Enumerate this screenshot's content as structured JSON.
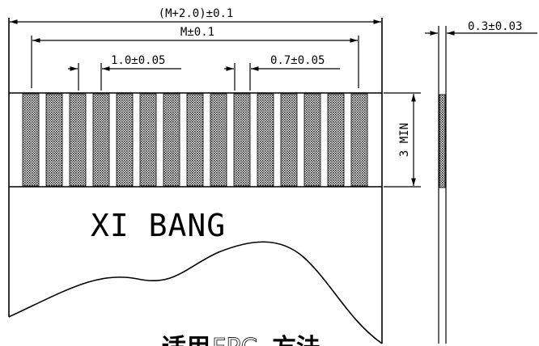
{
  "dimensions": {
    "overall_width": "(M+2.0)±0.1",
    "pitch_span": "M±0.1",
    "pitch": "1.0±0.05",
    "contact_width": "0.7±0.05",
    "exposed_length": "3 MIN",
    "thickness": "0.3±0.03"
  },
  "label": {
    "brand": "XI BANG"
  },
  "cut_text": {
    "bold_part_1": "适用",
    "light_part": "FPC",
    "bold_part_2": "方法"
  },
  "contacts": {
    "count": 15
  },
  "colors": {
    "ink": "#000000",
    "contact_fill": "#555555",
    "background": "#ffffff"
  }
}
